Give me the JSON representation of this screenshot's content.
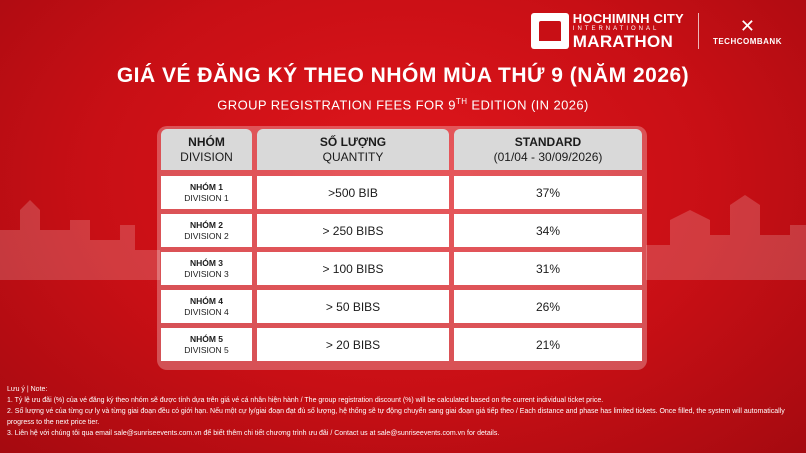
{
  "brand": {
    "event_line1": "HOCHIMINH CITY",
    "event_line2": "INTERNATIONAL",
    "event_line3": "MARATHON",
    "sponsor": "TECHCOMBANK"
  },
  "title": "GIÁ VÉ ĐĂNG KÝ THEO NHÓM MÙA THỨ 9 (NĂM 2026)",
  "subtitle": {
    "before": "GROUP REGISTRATION FEES FOR 9",
    "sup": "TH",
    "after": " EDITION (IN 2026)"
  },
  "table": {
    "headers": [
      {
        "vn": "NHÓM",
        "en": "DIVISION"
      },
      {
        "vn": "SỐ LƯỢNG",
        "en": "QUANTITY"
      },
      {
        "vn": "STANDARD",
        "en": "(01/04 - 30/09/2026)"
      }
    ],
    "rows": [
      {
        "vn": "NHÓM 1",
        "en": "DIVISION 1",
        "quantity": ">500 BIB",
        "discount": "37%"
      },
      {
        "vn": "NHÓM 2",
        "en": "DIVISION 2",
        "quantity": "> 250 BIBS",
        "discount": "34%"
      },
      {
        "vn": "NHÓM 3",
        "en": "DIVISION 3",
        "quantity": "> 100 BIBS",
        "discount": "31%"
      },
      {
        "vn": "NHÓM 4",
        "en": "DIVISION 4",
        "quantity": "> 50 BIBS",
        "discount": "26%"
      },
      {
        "vn": "NHÓM 5",
        "en": "DIVISION 5",
        "quantity": "> 20 BIBS",
        "discount": "21%"
      }
    ]
  },
  "notes": {
    "heading": "Lưu ý | Note:",
    "items": [
      "1. Tỷ lệ ưu đãi (%) của vé đăng ký theo nhóm sẽ được tính dựa trên giá vé cá nhân hiện hành / The group registration discount (%) will be calculated based on the current individual ticket price.",
      "2. Số lượng vé của từng cự ly và từng giai đoạn đều có giới hạn. Nếu một cự ly/giai đoạn đạt đủ số lượng, hệ thống sẽ tự động chuyển sang giai đoạn giá tiếp theo / Each distance and phase has limited tickets. Once filled, the system will automatically progress to the next price tier.",
      "3. Liên hệ với chúng tôi qua email sale@sunriseevents.com.vn để biết thêm chi tiết chương trình ưu đãi / Contact us at sale@sunriseevents.com.vn for details."
    ]
  }
}
